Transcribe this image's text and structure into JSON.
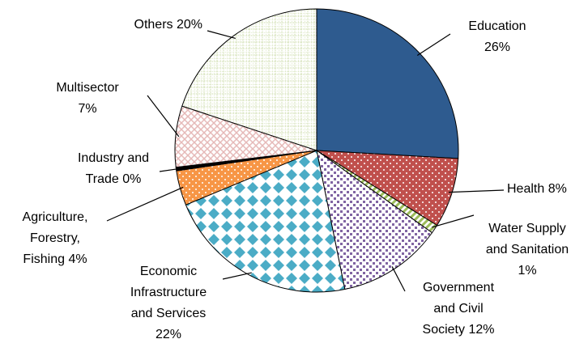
{
  "chart_data": {
    "type": "pie",
    "categories": [
      "Education",
      "Health",
      "Water Supply and Sanitation",
      "Government and Civil Society",
      "Economic Infrastructure and Services",
      "Agriculture, Forestry, Fishing",
      "Industry and Trade",
      "Multisector",
      "Others"
    ],
    "values": [
      26,
      8,
      1,
      12,
      22,
      4,
      0.4,
      7,
      20
    ],
    "value_labels": [
      "26%",
      "8%",
      "1%",
      "12%",
      "22%",
      "4%",
      "0%",
      "7%",
      "20%"
    ],
    "colors": [
      "#2e5b8f",
      "#c0504d",
      "#9bbb59",
      "#8064a2",
      "#4bacc6",
      "#f79646",
      "#000000",
      "#e6b9b8",
      "#c3d69b"
    ]
  }
}
